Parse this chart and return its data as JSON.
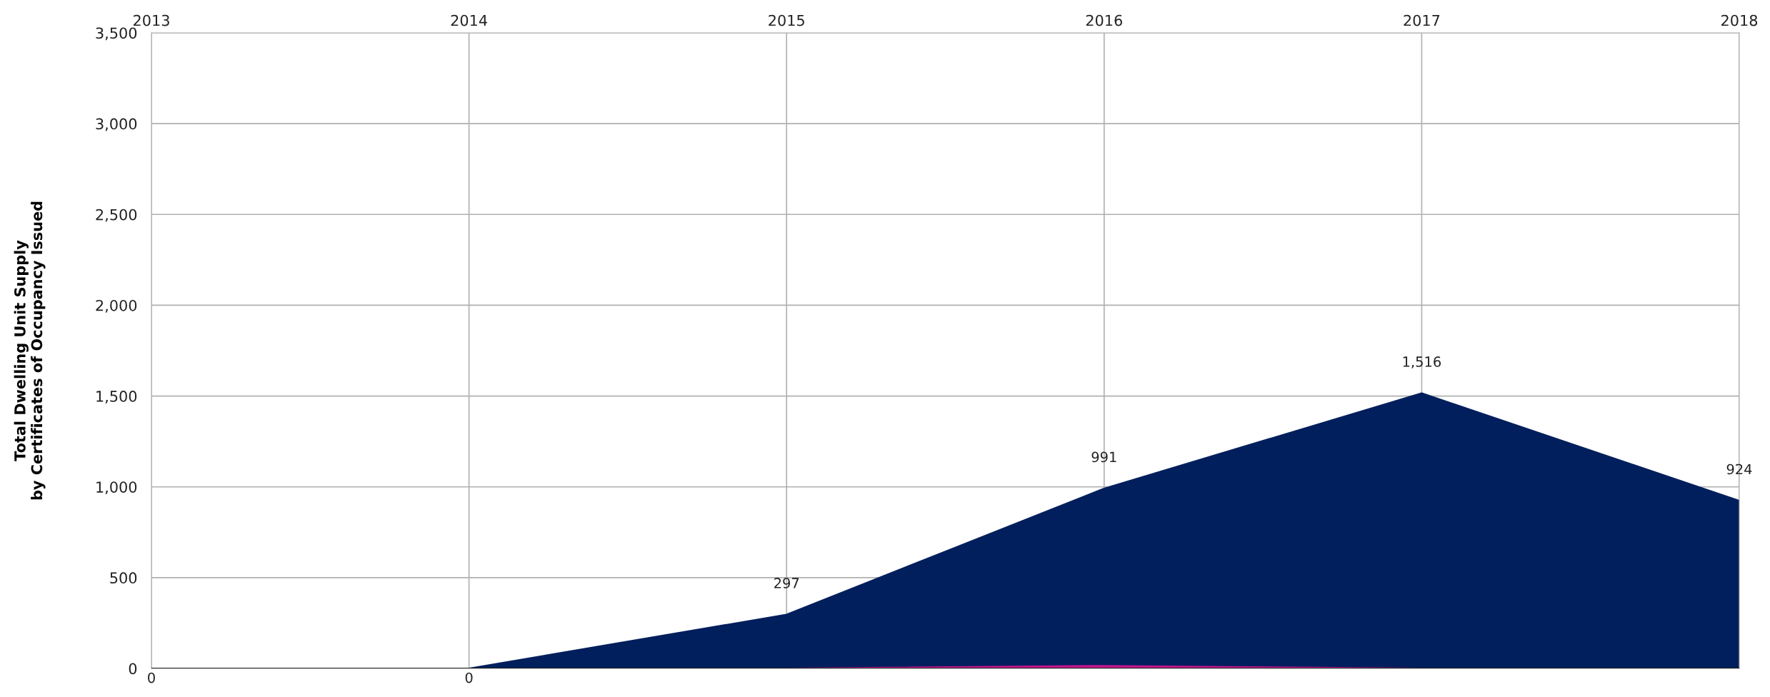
{
  "chart_data": {
    "type": "area",
    "ylabel": "Total Dwelling Unit Supply\nby Certificates of Occupancy Issued",
    "categories": [
      "2013",
      "2014",
      "2015",
      "2016",
      "2017",
      "2018"
    ],
    "series": [
      {
        "color": "#001f5c",
        "values": [
          0,
          0,
          297,
          991,
          1516,
          924
        ],
        "value_labels": [
          "0",
          "0",
          "297",
          "991",
          "1,516",
          "924"
        ]
      },
      {
        "color": "#c0168c",
        "values": [
          0,
          0,
          0,
          15,
          0,
          0
        ]
      }
    ],
    "ylim": [
      0,
      3500
    ],
    "yticks": [
      {
        "value": 0,
        "label": "0"
      },
      {
        "value": 500,
        "label": "500"
      },
      {
        "value": 1000,
        "label": "1,000"
      },
      {
        "value": 1500,
        "label": "1,500"
      },
      {
        "value": 2000,
        "label": "2,000"
      },
      {
        "value": 2500,
        "label": "2,500"
      },
      {
        "value": 3000,
        "label": "3,000"
      },
      {
        "value": 3500,
        "label": "3,500"
      }
    ],
    "grid": true
  }
}
